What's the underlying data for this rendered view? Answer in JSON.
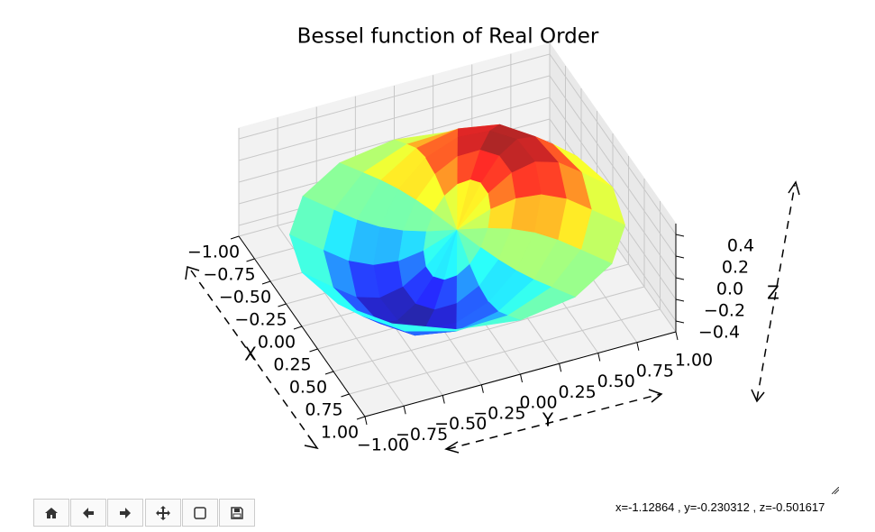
{
  "chart_data": {
    "type": "surface3d",
    "title": "Bessel function of Real Order",
    "xlabel": "X",
    "ylabel": "Y",
    "zlabel": "Z",
    "r": [
      0,
      0.2,
      0.35,
      0.5,
      0.65,
      0.8,
      1.0
    ],
    "theta": [
      0,
      22.5,
      45,
      67.5,
      90,
      112.5,
      135,
      157.5,
      180,
      202.5,
      225,
      247.5,
      270,
      292.5,
      315,
      337.5
    ],
    "z": [
      [
        0,
        0,
        0,
        0,
        0,
        0,
        0,
        0,
        0,
        0,
        0,
        0,
        0,
        0,
        0,
        0
      ],
      [
        -0.15,
        -0.039,
        0.078,
        0.183,
        0.26,
        0.297,
        0.29,
        0.238,
        0.15,
        0.039,
        -0.078,
        -0.183,
        -0.26,
        -0.297,
        -0.29,
        -0.238
      ],
      [
        -0.225,
        -0.059,
        0.117,
        0.274,
        0.39,
        0.446,
        0.435,
        0.357,
        0.225,
        0.059,
        -0.117,
        -0.274,
        -0.39,
        -0.446,
        -0.435,
        -0.357
      ],
      [
        -0.25,
        -0.066,
        0.13,
        0.305,
        0.433,
        0.496,
        0.483,
        0.397,
        0.25,
        0.066,
        -0.13,
        -0.305,
        -0.433,
        -0.496,
        -0.483,
        -0.397
      ],
      [
        -0.213,
        -0.056,
        0.11,
        0.259,
        0.368,
        0.421,
        0.411,
        0.337,
        0.213,
        0.056,
        -0.11,
        -0.259,
        -0.368,
        -0.421,
        -0.411,
        -0.337
      ],
      [
        -0.125,
        -0.033,
        0.065,
        0.152,
        0.217,
        0.248,
        0.242,
        0.198,
        0.125,
        0.033,
        -0.065,
        -0.152,
        -0.217,
        -0.248,
        -0.242,
        -0.198
      ],
      [
        0,
        0,
        0,
        0,
        0,
        0,
        0,
        0,
        0,
        0,
        0,
        0,
        0,
        0,
        0,
        0
      ]
    ],
    "colormap": "jet",
    "xlim": [
      -1,
      1
    ],
    "ylim": [
      -1,
      1
    ],
    "zlim": [
      -0.5,
      0.5
    ],
    "xticks": [
      {
        "value": -1,
        "label": "−1.00"
      },
      {
        "value": -0.75,
        "label": "−0.75"
      },
      {
        "value": -0.5,
        "label": "−0.50"
      },
      {
        "value": -0.25,
        "label": "−0.25"
      },
      {
        "value": 0,
        "label": "0.00"
      },
      0.25,
      {
        "value": 0.5,
        "label": "0.50"
      },
      0.75,
      {
        "value": 1,
        "label": "1.00"
      }
    ],
    "yticks": [
      {
        "value": -1,
        "label": "−1.00"
      },
      {
        "value": -0.75,
        "label": "−0.75"
      },
      {
        "value": -0.5,
        "label": "−0.50"
      },
      {
        "value": -0.25,
        "label": "−0.25"
      },
      {
        "value": 0,
        "label": "0.00"
      },
      0.25,
      {
        "value": 0.5,
        "label": "0.50"
      },
      0.75,
      {
        "value": 1,
        "label": "1.00"
      }
    ],
    "zticks": [
      {
        "value": -0.4,
        "label": "−0.4"
      },
      {
        "value": -0.2,
        "label": "−0.2"
      },
      {
        "value": 0,
        "label": "0.0"
      },
      0.2,
      0.4
    ],
    "grid": true
  },
  "status": "x=-1.12864 , y=-0.230312 , z=-0.501617"
}
